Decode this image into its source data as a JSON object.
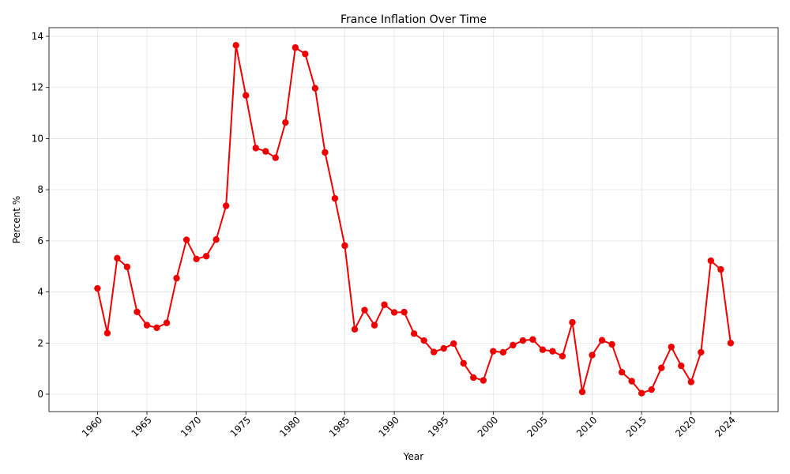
{
  "chart_data": {
    "type": "line",
    "title": "France Inflation Over Time",
    "xlabel": "Year",
    "ylabel": "Percent %",
    "xlim": [
      1955.1,
      2028.8
    ],
    "ylim": [
      -0.68,
      14.34
    ],
    "grid": true,
    "x_ticks": [
      1960,
      1965,
      1970,
      1975,
      1980,
      1985,
      1990,
      1995,
      2000,
      2005,
      2010,
      2015,
      2020,
      2024
    ],
    "y_ticks": [
      0,
      2,
      4,
      6,
      8,
      10,
      12,
      14
    ],
    "line_color": "#ee0000",
    "series": [
      {
        "x": [
          1960,
          1961,
          1962,
          1963,
          1964,
          1965,
          1966,
          1967,
          1968,
          1969,
          1970,
          1971,
          1972,
          1973,
          1974,
          1975,
          1976,
          1977,
          1978,
          1979,
          1980,
          1981,
          1982,
          1983,
          1984,
          1985,
          1986,
          1987,
          1988,
          1989,
          1990,
          1991,
          1992,
          1993,
          1994,
          1995,
          1996,
          1997,
          1998,
          1999,
          2000,
          2001,
          2002,
          2003,
          2004,
          2005,
          2006,
          2007,
          2008,
          2009,
          2010,
          2011,
          2012,
          2013,
          2014,
          2015,
          2016,
          2017,
          2018,
          2019,
          2020,
          2021,
          2022,
          2023,
          2024
        ],
        "values": [
          4.14,
          2.39,
          5.32,
          4.98,
          3.22,
          2.7,
          2.6,
          2.79,
          4.54,
          6.04,
          5.29,
          5.4,
          6.05,
          7.37,
          13.65,
          11.69,
          9.63,
          9.5,
          9.25,
          10.63,
          13.56,
          13.31,
          11.97,
          9.46,
          7.66,
          5.81,
          2.54,
          3.29,
          2.7,
          3.5,
          3.2,
          3.21,
          2.37,
          2.1,
          1.65,
          1.79,
          1.98,
          1.21,
          0.65,
          0.54,
          1.68,
          1.64,
          1.92,
          2.1,
          2.14,
          1.74,
          1.68,
          1.49,
          2.81,
          0.09,
          1.53,
          2.11,
          1.95,
          0.86,
          0.51,
          0.04,
          0.18,
          1.03,
          1.85,
          1.11,
          0.48,
          1.64,
          5.22,
          4.88,
          2.0
        ]
      }
    ]
  }
}
